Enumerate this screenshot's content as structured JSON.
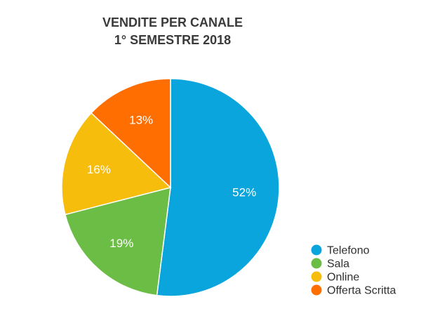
{
  "chart_data": {
    "type": "pie",
    "title": "VENDITE PER CANALE",
    "subtitle": "1° SEMESTRE 2018",
    "categories": [
      "Telefono",
      "Sala",
      "Online",
      "Offerta Scritta"
    ],
    "values": [
      52,
      19,
      16,
      13
    ],
    "labels": [
      "52%",
      "19%",
      "16%",
      "13%"
    ],
    "colors": [
      "#0aa5dd",
      "#6cbd45",
      "#f6bd0c",
      "#ff6e00"
    ],
    "legend_position": "bottom-right",
    "start_angle_deg": 0,
    "direction": "clockwise"
  }
}
